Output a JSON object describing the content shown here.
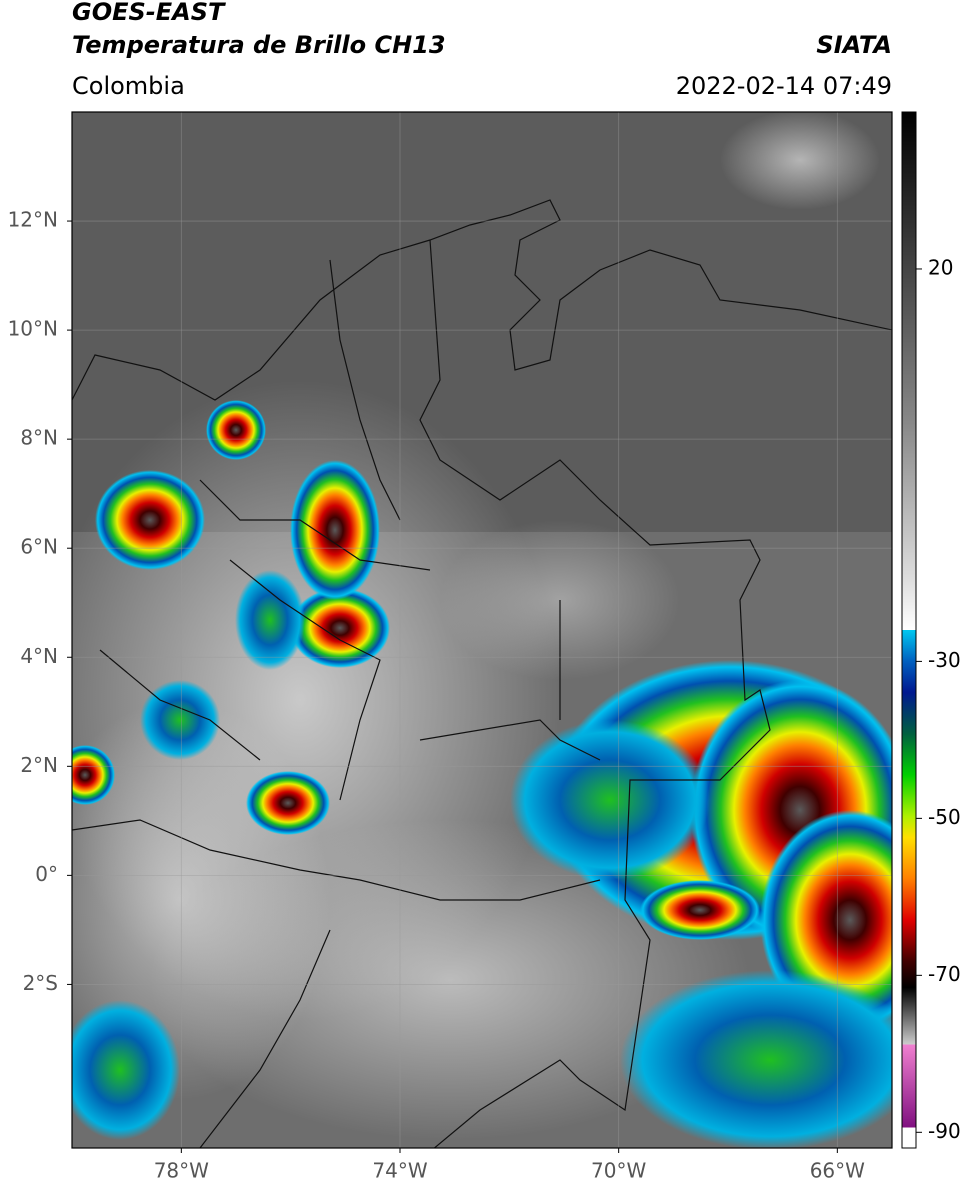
{
  "header": {
    "title_line1": "GOES-EAST",
    "title_line2": "Temperatura de Brillo CH13",
    "region": "Colombia",
    "source": "SIATA",
    "timestamp": "2022-02-14 07:49"
  },
  "map": {
    "lonlim": [
      -80,
      -65
    ],
    "latlim": [
      -5,
      14
    ],
    "lon_ticks": [
      {
        "value": -78,
        "label": "78°W"
      },
      {
        "value": -74,
        "label": "74°W"
      },
      {
        "value": -70,
        "label": "70°W"
      },
      {
        "value": -66,
        "label": "66°W"
      }
    ],
    "lat_ticks": [
      {
        "value": 12,
        "label": "12°N"
      },
      {
        "value": 10,
        "label": "10°N"
      },
      {
        "value": 8,
        "label": "8°N"
      },
      {
        "value": 6,
        "label": "6°N"
      },
      {
        "value": 4,
        "label": "4°N"
      },
      {
        "value": 2,
        "label": "2°N"
      },
      {
        "value": 0,
        "label": "0°"
      },
      {
        "value": -2,
        "label": "2°S"
      }
    ],
    "grid": true
  },
  "colorbar": {
    "lim": [
      -92,
      40
    ],
    "ticks": [
      20,
      -30,
      -50,
      -70,
      -90
    ]
  }
}
